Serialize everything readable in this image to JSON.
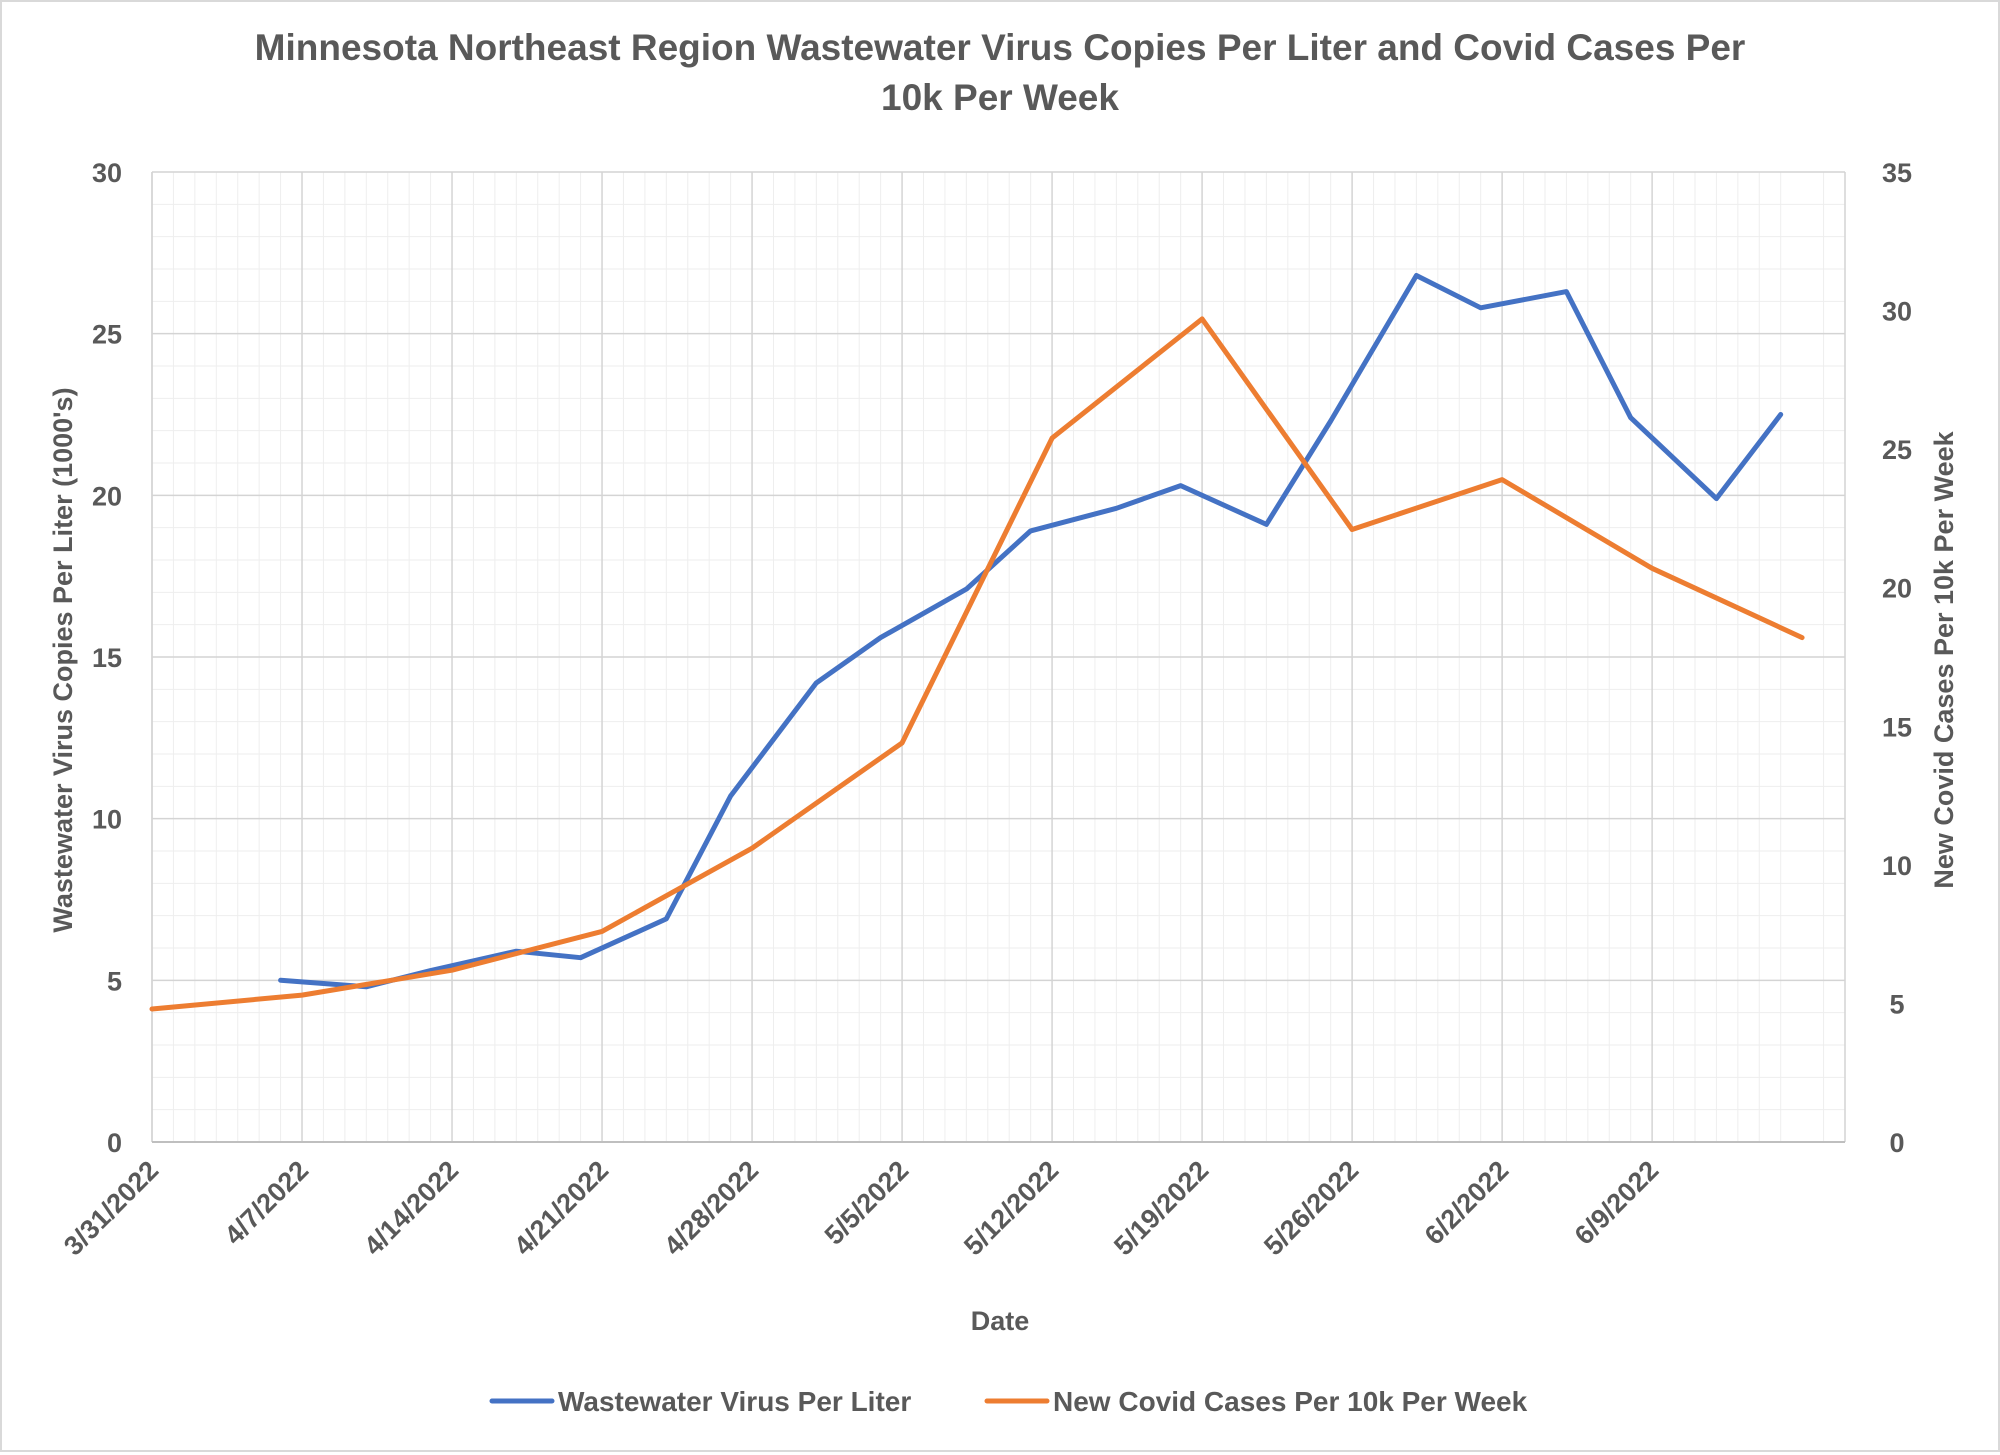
{
  "chart_data": {
    "type": "line",
    "title_lines": [
      "Minnesota Northeast Region Wastewater Virus Copies Per Liter and Covid Cases Per",
      "10k Per Week"
    ],
    "xlabel": "Date",
    "ylabel": "Wastewater Virus Copies Per Liter (1000's)",
    "y2label": "New Covid Cases Per 10k Per Week",
    "x_range": [
      "2022-03-31",
      "2022-06-18"
    ],
    "ylim": [
      0,
      30
    ],
    "y_ticks": [
      "0",
      "5",
      "10",
      "15",
      "20",
      "25",
      "30"
    ],
    "y2lim": [
      0,
      35
    ],
    "y2_ticks": [
      "0",
      "5",
      "10",
      "15",
      "20",
      "25",
      "30",
      "35"
    ],
    "x_tick_labels": [
      "3/31/2022",
      "4/7/2022",
      "4/14/2022",
      "4/21/2022",
      "4/28/2022",
      "5/5/2022",
      "5/12/2022",
      "5/19/2022",
      "5/26/2022",
      "6/2/2022",
      "6/9/2022"
    ],
    "x_tick_dates": [
      "2022-03-31",
      "2022-04-07",
      "2022-04-14",
      "2022-04-21",
      "2022-04-28",
      "2022-05-05",
      "2022-05-12",
      "2022-05-19",
      "2022-05-26",
      "2022-06-02",
      "2022-06-09"
    ],
    "grid": true,
    "legend_position": "bottom",
    "series": [
      {
        "name": "Wastewater Virus Per Liter",
        "axis": "left",
        "color": "#4472C4",
        "x": [
          "2022-04-06",
          "2022-04-10",
          "2022-04-13",
          "2022-04-17",
          "2022-04-20",
          "2022-04-24",
          "2022-04-27",
          "2022-05-01",
          "2022-05-04",
          "2022-05-08",
          "2022-05-11",
          "2022-05-15",
          "2022-05-18",
          "2022-05-22",
          "2022-05-25",
          "2022-05-29",
          "2022-06-01",
          "2022-06-05",
          "2022-06-08",
          "2022-06-12",
          "2022-06-15"
        ],
        "y": [
          5.0,
          4.8,
          5.3,
          5.9,
          5.7,
          6.9,
          10.7,
          14.2,
          15.6,
          17.1,
          18.9,
          19.6,
          20.3,
          19.1,
          22.3,
          26.8,
          25.8,
          26.3,
          22.4,
          19.9,
          22.5
        ]
      },
      {
        "name": "New Covid Cases Per 10k Per Week",
        "axis": "right",
        "color": "#ED7D31",
        "x": [
          "2022-03-31",
          "2022-04-07",
          "2022-04-14",
          "2022-04-21",
          "2022-04-28",
          "2022-05-05",
          "2022-05-12",
          "2022-05-19",
          "2022-05-26",
          "2022-06-02",
          "2022-06-09",
          "2022-06-16"
        ],
        "y": [
          4.8,
          5.3,
          6.2,
          7.6,
          10.6,
          14.4,
          25.4,
          29.7,
          22.1,
          23.9,
          20.7,
          18.2
        ]
      }
    ]
  }
}
